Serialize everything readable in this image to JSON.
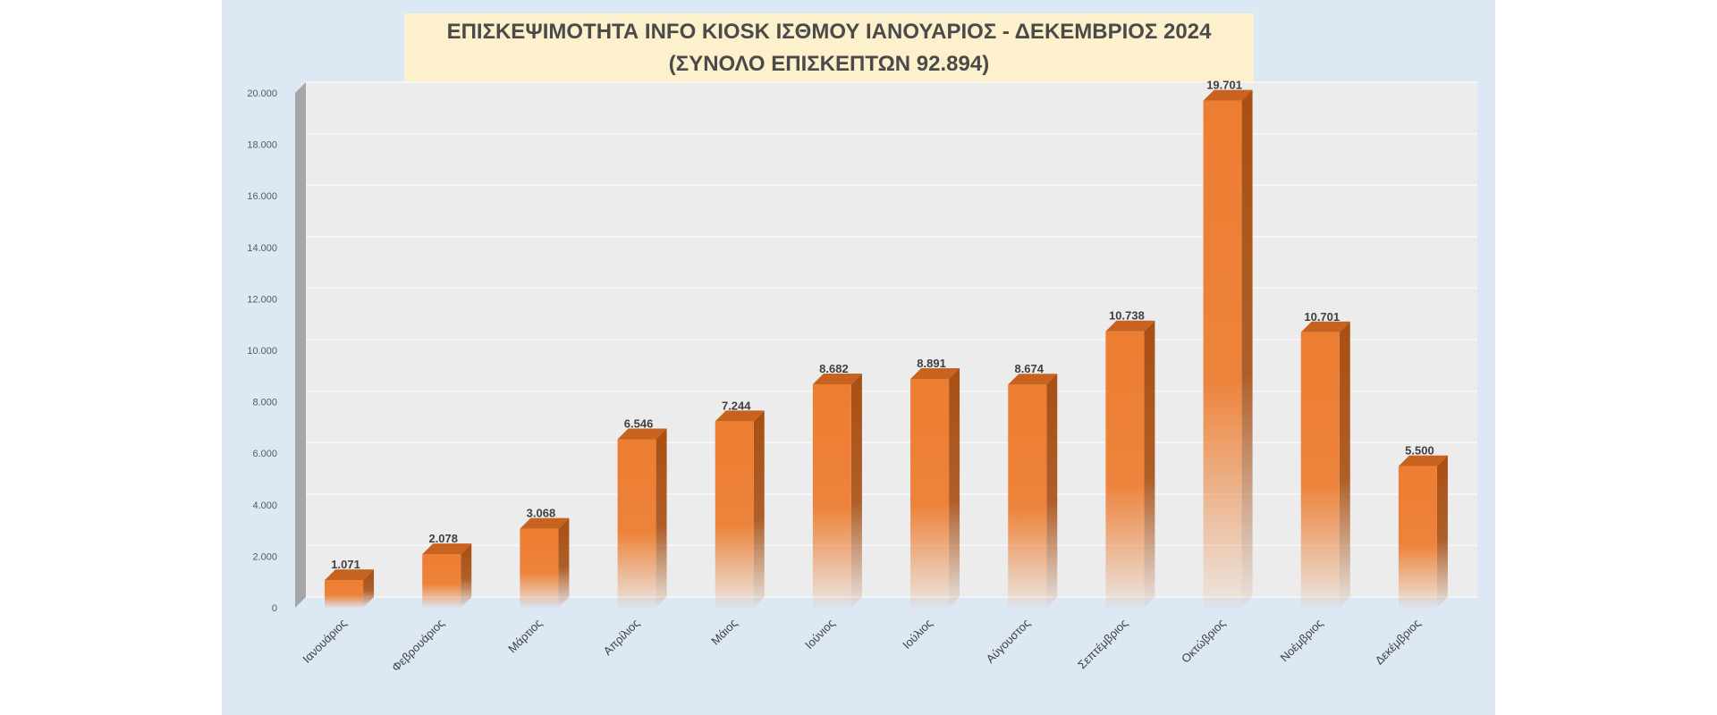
{
  "chart_data": {
    "type": "bar",
    "title": "ΕΠΙΣΚΕΨΙΜΟΤΗΤΑ INFO KIOSK ΙΣΘΜΟΥ ΙΑΝΟΥΑΡΙΟΣ - ΔΕΚΕΜΒΡΙΟΣ 2024",
    "subtitle": "(ΣΥΝΟΛΟ ΕΠΙΣΚΕΠΤΩΝ 92.894)",
    "categories": [
      "Ιανουάριος",
      "Φεβρουάριος",
      "Μάρτιος",
      "Απρίλιος",
      "Μάιος",
      "Ιούνιος",
      "Ιούλιος",
      "Αύγουστος",
      "Σεπτέμβριος",
      "Οκτώβριος",
      "Νοέμβριος",
      "Δεκέμβριος"
    ],
    "values": [
      1071,
      2078,
      3068,
      6546,
      7244,
      8682,
      8891,
      8674,
      10738,
      19701,
      10701,
      5500
    ],
    "value_labels": [
      "1.071",
      "2.078",
      "3.068",
      "6.546",
      "7.244",
      "8.682",
      "8.891",
      "8.674",
      "10.738",
      "19.701",
      "10.701",
      "5.500"
    ],
    "ylim": [
      0,
      20000
    ],
    "yticks": [
      0,
      2000,
      4000,
      6000,
      8000,
      10000,
      12000,
      14000,
      16000,
      18000,
      20000
    ],
    "ytick_labels": [
      "0",
      "2.000",
      "4.000",
      "6.000",
      "8.000",
      "10.000",
      "12.000",
      "14.000",
      "16.000",
      "18.000",
      "20.000"
    ],
    "grid": true,
    "colors": {
      "bar_front": "#ed7d31",
      "bar_side": "#a84f13",
      "bar_top": "#c7621f",
      "frame_bg": "#dde8f5",
      "plot_bg": "#ececec",
      "title_bg": "#fdf0cc",
      "wall_side": "#a6a6a6",
      "text": "#404040"
    }
  }
}
